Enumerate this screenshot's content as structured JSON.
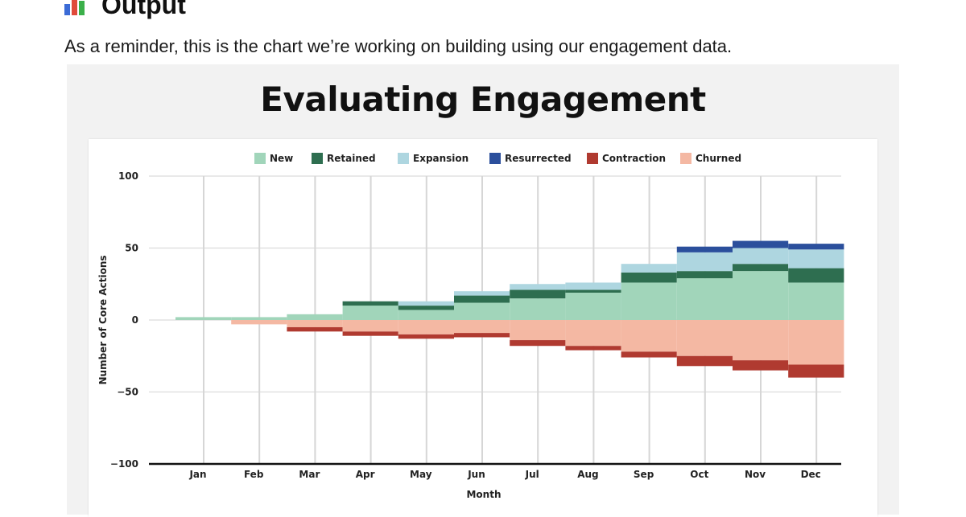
{
  "header": {
    "title": "Output",
    "icon": "bar-chart-icon",
    "intro": "As a reminder, this is the chart we’re working on building using our engagement data."
  },
  "chart_data": {
    "type": "bar",
    "title": "Evaluating Engagement",
    "xlabel": "Month",
    "ylabel": "Number of Core Actions",
    "ylim": [
      -100,
      100
    ],
    "yticks": [
      100,
      50,
      0,
      -50,
      -100
    ],
    "ytick_labels": [
      "100",
      "50",
      "0",
      "−50",
      "−100"
    ],
    "grid": true,
    "legend": "top",
    "stacked": true,
    "categories": [
      "Jan",
      "Feb",
      "Mar",
      "Apr",
      "May",
      "Jun",
      "Jul",
      "Aug",
      "Sep",
      "Oct",
      "Nov",
      "Dec"
    ],
    "series": [
      {
        "name": "New",
        "color": "#a1d5ba",
        "values": [
          2,
          2,
          4,
          10,
          7,
          12,
          15,
          19,
          26,
          29,
          34,
          26
        ]
      },
      {
        "name": "Retained",
        "color": "#2e6e50",
        "values": [
          0,
          0,
          0,
          3,
          3,
          5,
          6,
          2,
          7,
          5,
          5,
          10
        ]
      },
      {
        "name": "Expansion",
        "color": "#aed6e0",
        "values": [
          0,
          0,
          0,
          0,
          3,
          3,
          4,
          5,
          6,
          13,
          11,
          13
        ]
      },
      {
        "name": "Resurrected",
        "color": "#2b4f9c",
        "values": [
          0,
          0,
          0,
          0,
          0,
          0,
          0,
          0,
          0,
          4,
          5,
          4
        ]
      },
      {
        "name": "Churned",
        "color": "#f4b8a3",
        "values": [
          0,
          -3,
          -5,
          -8,
          -10,
          -9,
          -14,
          -18,
          -22,
          -25,
          -28,
          -31
        ]
      },
      {
        "name": "Contraction",
        "color": "#b03a30",
        "values": [
          0,
          0,
          -3,
          -3,
          -3,
          -3,
          -4,
          -3,
          -4,
          -7,
          -7,
          -9
        ]
      }
    ],
    "legend_order": [
      "New",
      "Retained",
      "Expansion",
      "Resurrected",
      "Contraction",
      "Churned"
    ]
  }
}
